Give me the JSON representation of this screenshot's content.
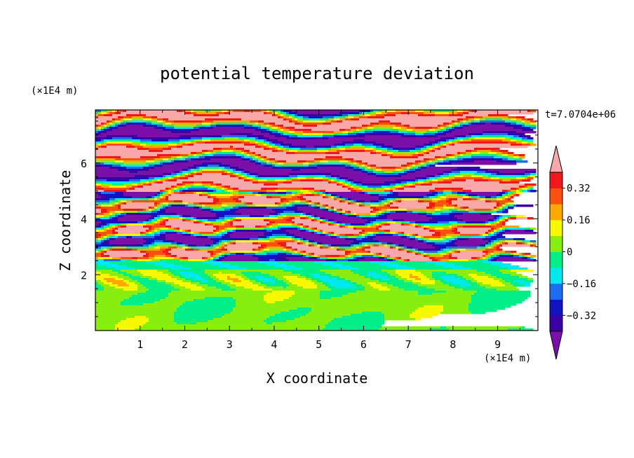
{
  "chart_data": {
    "type": "heatmap",
    "title": "potential temperature deviation",
    "xlabel": "X coordinate",
    "ylabel": "Z coordinate",
    "x_unit": "(×1E4 m)",
    "y_unit": "(×1E4 m)",
    "time_label": "t=7.0704e+06",
    "xlim": [
      0,
      9.9
    ],
    "ylim": [
      0,
      7.9
    ],
    "x_ticks": [
      1,
      2,
      3,
      4,
      5,
      6,
      7,
      8,
      9
    ],
    "y_ticks": [
      2,
      4,
      6
    ],
    "x_tick_labels": [
      "1",
      "2",
      "3",
      "4",
      "5",
      "6",
      "7",
      "8",
      "9"
    ],
    "y_tick_labels": [
      "2",
      "4",
      "6"
    ],
    "colorbar": {
      "levels": [
        -0.4,
        -0.32,
        -0.24,
        -0.16,
        -0.08,
        0,
        0.08,
        0.16,
        0.24,
        0.32,
        0.4
      ],
      "colors": [
        "#7a10a8",
        "#3a00a0",
        "#1212c0",
        "#1e6cf0",
        "#00e8f0",
        "#00ee88",
        "#88ee10",
        "#f8f800",
        "#ffa800",
        "#ff5010",
        "#f01818",
        "#f8a8a8"
      ],
      "tick_labels": [
        "0.32",
        "0.16",
        "0",
        "−0.16",
        "−0.32"
      ],
      "tick_values": [
        0.32,
        0.16,
        0,
        -0.16,
        -0.32
      ],
      "under_color": "#7a10a8",
      "over_color": "#f8a8a8"
    },
    "field_description_layers": [
      {
        "z_from": 0,
        "z_to": 2.2,
        "dominant": [
          0,
          0.08
        ]
      },
      {
        "z_from": 2.2,
        "z_to": 2.5,
        "dominant": [
          -0.08,
          0
        ]
      },
      {
        "z_from": 2.5,
        "z_to": 5.0,
        "dominant": [
          -0.4,
          0.4
        ]
      },
      {
        "z_from": 5.0,
        "z_to": 7.9,
        "dominant": [
          -0.4,
          0.4
        ]
      }
    ]
  }
}
